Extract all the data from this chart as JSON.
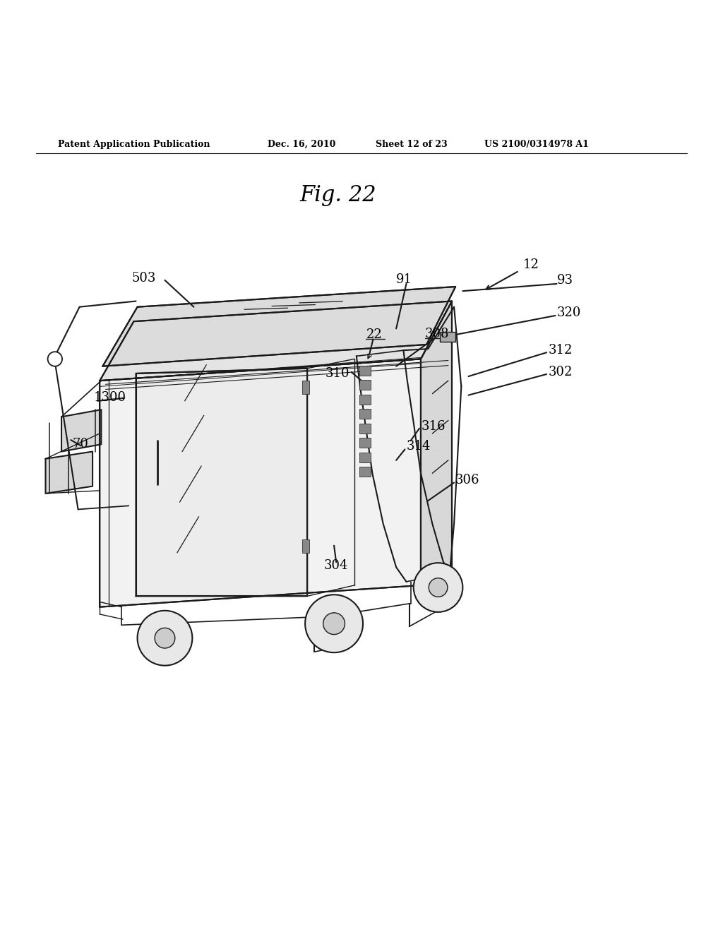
{
  "background_color": "#ffffff",
  "header_text": "Patent Application Publication",
  "header_date": "Dec. 16, 2010",
  "header_sheet": "Sheet 12 of 23",
  "header_patent": "US 2100/0314978 A1",
  "fig_label": "Fig. 22",
  "line_color": "#1a1a1a",
  "line_width": 1.5
}
